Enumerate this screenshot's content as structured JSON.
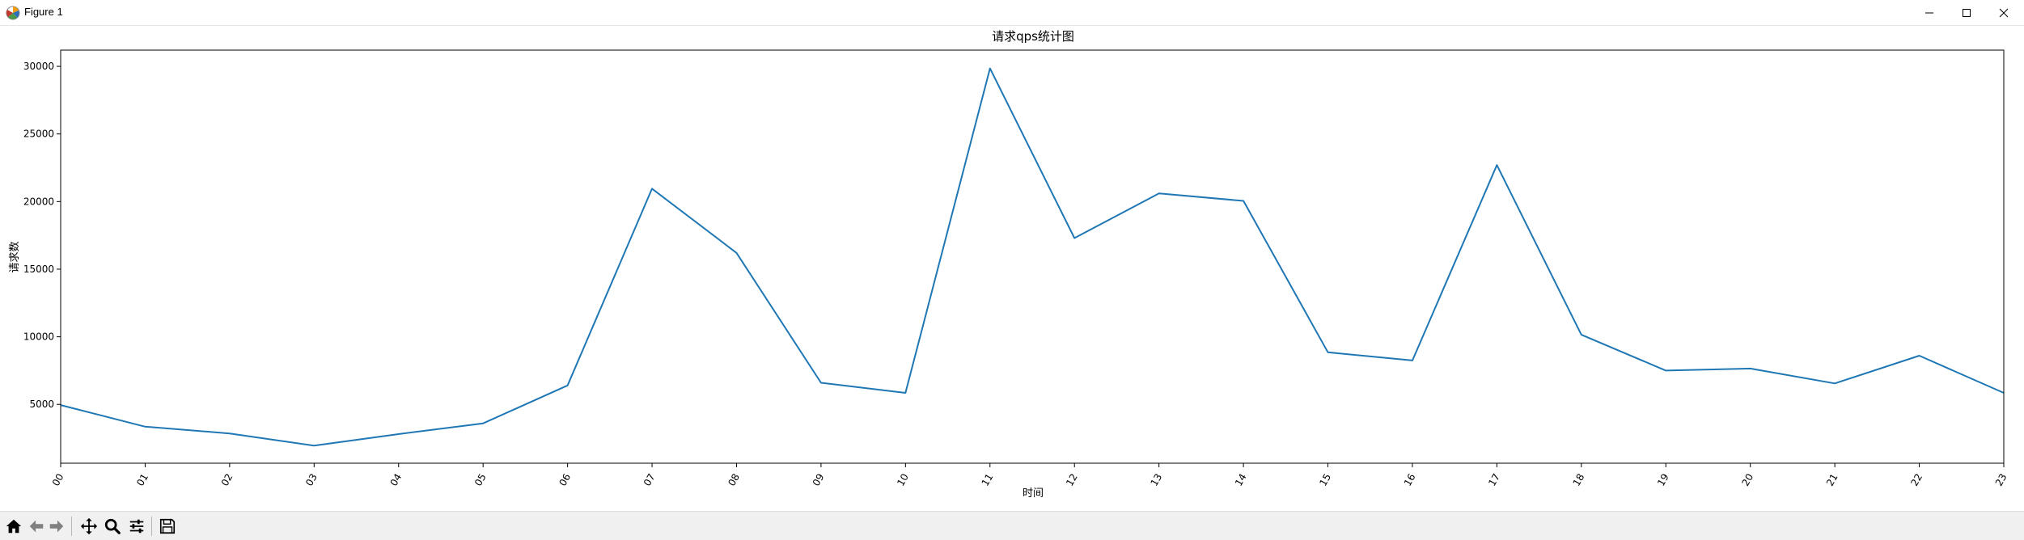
{
  "window": {
    "title": "Figure 1"
  },
  "toolbar": {
    "buttons": [
      "home-icon",
      "back-icon",
      "forward-icon",
      "pan-icon",
      "zoom-icon",
      "configure-subplots-icon",
      "save-icon"
    ]
  },
  "chart_data": {
    "type": "line",
    "title": "请求qps统计图",
    "xlabel": "时间",
    "ylabel": "请求数",
    "categories": [
      "00",
      "01",
      "02",
      "03",
      "04",
      "05",
      "06",
      "07",
      "08",
      "09",
      "10",
      "11",
      "12",
      "13",
      "14",
      "15",
      "16",
      "17",
      "18",
      "19",
      "20",
      "21",
      "22",
      "23"
    ],
    "series": [
      {
        "values": [
          4950,
          3350,
          2850,
          1950,
          2800,
          3600,
          6400,
          20950,
          16200,
          6600,
          5850,
          29850,
          17300,
          20600,
          20050,
          8850,
          8250,
          22700,
          10150,
          7500,
          7650,
          6550,
          8600,
          5850
        ]
      }
    ],
    "yticks": [
      5000,
      10000,
      15000,
      20000,
      25000,
      30000
    ],
    "ylim": [
      650,
      31200
    ],
    "line_color": "#1f77b4",
    "grid": false,
    "legend": false
  }
}
